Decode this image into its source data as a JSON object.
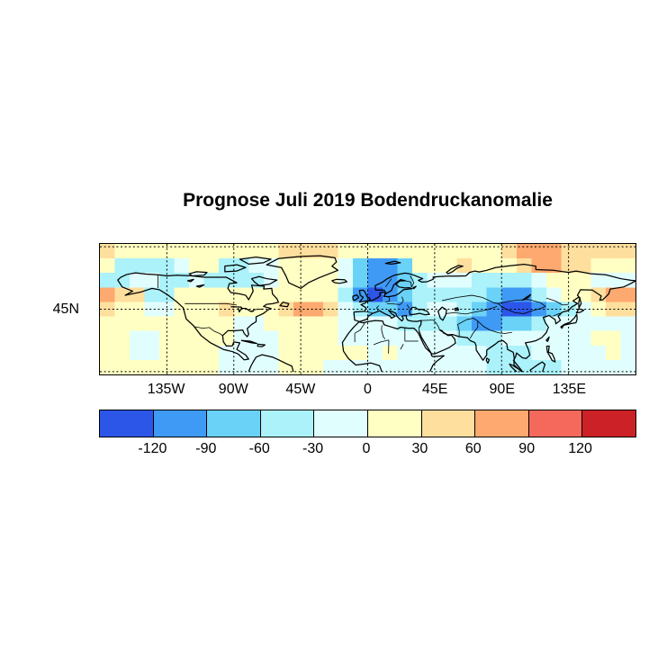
{
  "figure": {
    "title": "Prognose Juli 2019 Bodendruckanomalie"
  },
  "chart_data": {
    "type": "heatmap",
    "subtype": "filled-contour-world-map-northern-hemisphere",
    "title": "Prognose Juli 2019 Bodendruckanomalie",
    "projection": "equirectangular",
    "lon_range": [
      -180,
      180
    ],
    "lat_range": [
      0,
      90
    ],
    "x_axis": {
      "ticks": [
        {
          "label": "135W",
          "lon": -135
        },
        {
          "label": "90W",
          "lon": -90
        },
        {
          "label": "45W",
          "lon": -45
        },
        {
          "label": "0",
          "lon": 0
        },
        {
          "label": "45E",
          "lon": 45
        },
        {
          "label": "90E",
          "lon": 90
        },
        {
          "label": "135E",
          "lon": 135
        }
      ]
    },
    "y_axis": {
      "ticks": [
        {
          "label": "45N",
          "lat": 45
        }
      ]
    },
    "gridlines": {
      "style": "dashed",
      "lons": [
        -135,
        -90,
        -45,
        0,
        45,
        90,
        135
      ],
      "lats": [
        0,
        45,
        90
      ]
    },
    "colorbar": {
      "orientation": "horizontal",
      "tick_labels": [
        "-120",
        "-90",
        "-60",
        "-30",
        "0",
        "30",
        "60",
        "90",
        "120"
      ],
      "level_colors": [
        "#2C56E8",
        "#3F9AF5",
        "#6AD2F7",
        "#ABF2FA",
        "#E1FEFE",
        "#FFFFC3",
        "#FFDF9E",
        "#FEA96F",
        "#F4695B",
        "#CD2128"
      ]
    },
    "anomaly_grid": {
      "description": "Pressure-anomaly field approximated on a 10deg grid. Rows from top (lat 90-80N) to bottom (10-0N); columns from 180W to 180E. Each value is an index into colorbar.level_colors (0 = strongest negative / dark blue, 9 = strongest positive / dark red).",
      "lon_step": 10,
      "lat_step": 10,
      "rows": [
        [
          6,
          5,
          5,
          5,
          5,
          5,
          5,
          5,
          5,
          5,
          5,
          5,
          6,
          6,
          6,
          6,
          5,
          5,
          5,
          5,
          5,
          5,
          5,
          5,
          5,
          5,
          5,
          6,
          7,
          7,
          7,
          6,
          6,
          6,
          6,
          6
        ],
        [
          5,
          3,
          3,
          3,
          3,
          4,
          5,
          5,
          3,
          3,
          4,
          4,
          5,
          5,
          5,
          5,
          4,
          2,
          1,
          1,
          2,
          5,
          5,
          5,
          6,
          5,
          5,
          5,
          6,
          7,
          7,
          6,
          6,
          5,
          5,
          5
        ],
        [
          3,
          3,
          4,
          4,
          3,
          3,
          4,
          3,
          3,
          3,
          3,
          4,
          5,
          5,
          5,
          5,
          4,
          2,
          1,
          1,
          2,
          3,
          4,
          4,
          4,
          3,
          3,
          3,
          3,
          4,
          5,
          5,
          5,
          4,
          4,
          4
        ],
        [
          7,
          6,
          6,
          3,
          3,
          5,
          5,
          5,
          5,
          5,
          5,
          5,
          5,
          5,
          5,
          5,
          3,
          1,
          0,
          1,
          2,
          3,
          3,
          3,
          3,
          3,
          2,
          1,
          1,
          3,
          4,
          5,
          5,
          6,
          7,
          7
        ],
        [
          6,
          5,
          5,
          4,
          4,
          5,
          5,
          5,
          6,
          5,
          5,
          5,
          6,
          7,
          7,
          6,
          4,
          3,
          2,
          2,
          1,
          3,
          4,
          4,
          3,
          2,
          1,
          0,
          0,
          1,
          2,
          3,
          4,
          5,
          6,
          6
        ],
        [
          5,
          5,
          5,
          5,
          5,
          5,
          5,
          5,
          5,
          4,
          4,
          5,
          5,
          5,
          5,
          5,
          4,
          4,
          4,
          4,
          3,
          3,
          3,
          3,
          2,
          1,
          1,
          2,
          2,
          3,
          4,
          4,
          4,
          4,
          4,
          4
        ],
        [
          5,
          5,
          4,
          4,
          5,
          5,
          5,
          5,
          5,
          4,
          4,
          4,
          5,
          5,
          5,
          5,
          4,
          4,
          4,
          4,
          4,
          4,
          4,
          4,
          3,
          3,
          3,
          4,
          4,
          4,
          4,
          4,
          4,
          5,
          5,
          4
        ],
        [
          5,
          5,
          4,
          4,
          5,
          5,
          5,
          5,
          4,
          4,
          4,
          4,
          5,
          5,
          5,
          5,
          5,
          5,
          4,
          5,
          4,
          4,
          4,
          4,
          4,
          4,
          3,
          3,
          3,
          4,
          4,
          4,
          4,
          4,
          5,
          4
        ],
        [
          5,
          5,
          5,
          5,
          5,
          5,
          5,
          5,
          4,
          4,
          4,
          4,
          5,
          5,
          5,
          4,
          4,
          4,
          4,
          4,
          4,
          4,
          4,
          4,
          4,
          4,
          3,
          3,
          3,
          3,
          3,
          4,
          4,
          4,
          4,
          4
        ]
      ]
    }
  }
}
